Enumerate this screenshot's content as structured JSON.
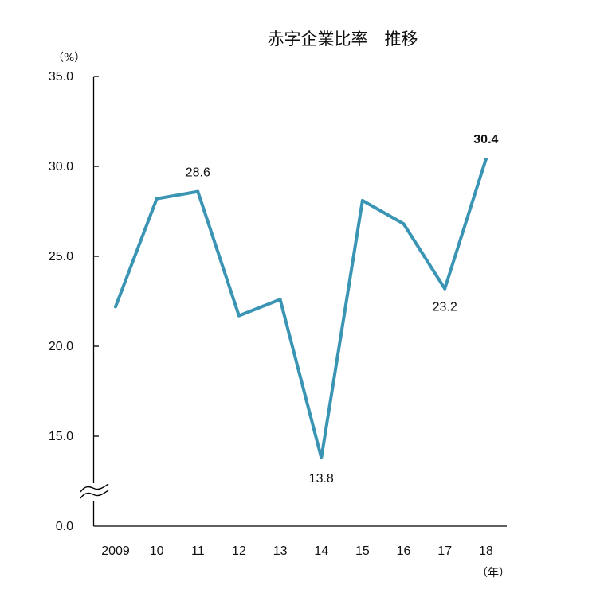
{
  "chart_data": {
    "type": "line",
    "title": "赤字企業比率　推移",
    "y_unit": "（%）",
    "x_unit": "（年）",
    "categories": [
      "2009",
      "10",
      "11",
      "12",
      "13",
      "14",
      "15",
      "16",
      "17",
      "18"
    ],
    "series": [
      {
        "values": [
          22.2,
          28.2,
          28.6,
          21.7,
          22.6,
          13.8,
          28.1,
          26.8,
          23.2,
          30.4
        ],
        "color": "#3a94b4"
      }
    ],
    "yticks": [
      "0.0",
      "15.0",
      "20.0",
      "25.0",
      "30.0",
      "35.0"
    ],
    "ylim": [
      0,
      35
    ],
    "axis_break": true,
    "grid": false,
    "data_labels": [
      {
        "index": 2,
        "text": "28.6",
        "bold": false
      },
      {
        "index": 5,
        "text": "13.8",
        "bold": false
      },
      {
        "index": 8,
        "text": "23.2",
        "bold": false
      },
      {
        "index": 9,
        "text": "30.4",
        "bold": true
      }
    ]
  }
}
